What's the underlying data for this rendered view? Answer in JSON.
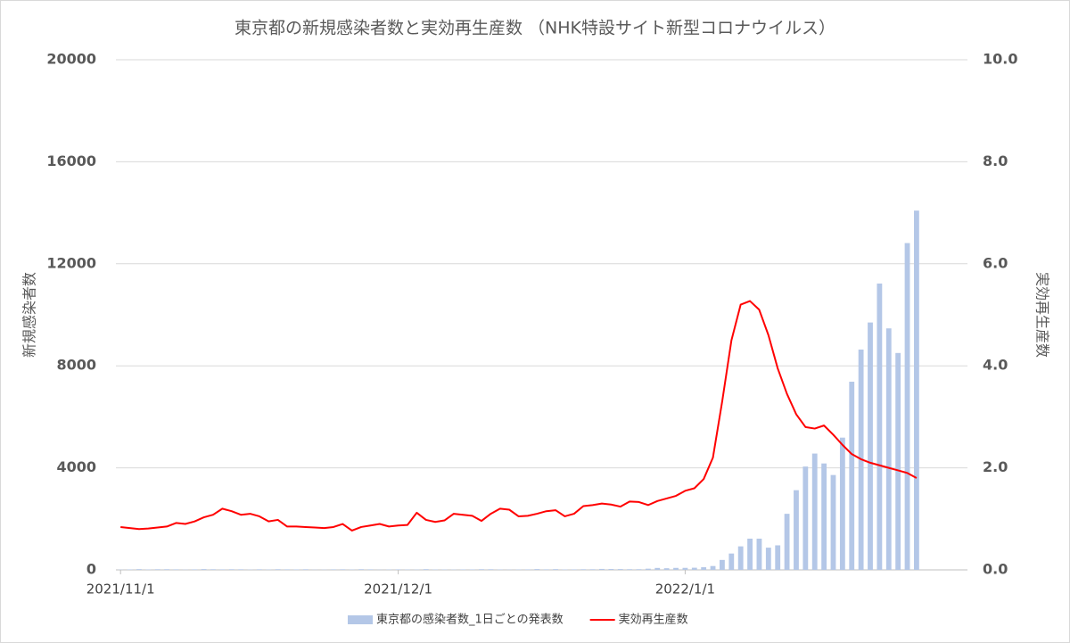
{
  "chart_data": {
    "type": "bar-line",
    "title": "東京都の新規感染者数と実効再生産数 （NHK特設サイト新型コロナウイルス）",
    "y_label": "新規感染者数",
    "y2_label": "実効再生産数",
    "categories": [
      "2021/11/1",
      null,
      null,
      null,
      null,
      null,
      null,
      null,
      null,
      null,
      null,
      null,
      null,
      null,
      null,
      null,
      null,
      null,
      null,
      null,
      null,
      null,
      null,
      null,
      null,
      null,
      null,
      null,
      null,
      null,
      "2021/12/1",
      null,
      null,
      null,
      null,
      null,
      null,
      null,
      null,
      null,
      null,
      null,
      null,
      null,
      null,
      null,
      null,
      null,
      null,
      null,
      null,
      null,
      null,
      null,
      null,
      null,
      null,
      null,
      null,
      null,
      null,
      "2022/1/1",
      null,
      null,
      null,
      null,
      null,
      null,
      null,
      null,
      null,
      null,
      null,
      null,
      null,
      null,
      null,
      null,
      null,
      null,
      null,
      null,
      null,
      null,
      null,
      null,
      null,
      null,
      null,
      null,
      null,
      null
    ],
    "ylim": [
      0,
      20000
    ],
    "yticks": [
      0,
      4000,
      8000,
      12000,
      16000,
      20000
    ],
    "y2lim": [
      0,
      10
    ],
    "y2ticks": [
      {
        "value": 0,
        "label": "0.0"
      },
      {
        "value": 2,
        "label": "2.0"
      },
      {
        "value": 4,
        "label": "4.0"
      },
      {
        "value": 6,
        "label": "6.0"
      },
      {
        "value": 8,
        "label": "8.0"
      },
      {
        "value": 10,
        "label": "10.0"
      }
    ],
    "grid": true,
    "legend": "bottom",
    "series": [
      {
        "name": "東京都の感染者数_1日ごとの発表数",
        "type": "bar",
        "color": "#b4c7e7",
        "values": [
          9,
          18,
          29,
          17,
          25,
          26,
          21,
          10,
          20,
          31,
          25,
          20,
          25,
          23,
          11,
          23,
          14,
          26,
          21,
          18,
          24,
          8,
          10,
          21,
          23,
          13,
          26,
          21,
          7,
          14,
          20,
          14,
          12,
          28,
          15,
          15,
          11,
          18,
          18,
          26,
          25,
          15,
          9,
          15,
          19,
          31,
          21,
          29,
          16,
          19,
          25,
          25,
          37,
          34,
          32,
          27,
          27,
          46,
          76,
          64,
          78,
          79,
          84,
          103,
          151,
          390,
          641,
          922,
          1224,
          1223,
          871,
          962,
          2198,
          3124,
          4051,
          4561,
          4172,
          3719,
          5185,
          7377,
          8638,
          9699,
          11227,
          9468,
          8503,
          12813,
          14086,
          null,
          null,
          null,
          null,
          null
        ]
      },
      {
        "name": "実効再生産数",
        "type": "line",
        "axis": "y2",
        "color": "#ff0000",
        "values": [
          0.84,
          0.82,
          0.8,
          0.81,
          0.83,
          0.85,
          0.92,
          0.9,
          0.95,
          1.03,
          1.08,
          1.2,
          1.15,
          1.08,
          1.1,
          1.05,
          0.95,
          0.98,
          0.85,
          0.85,
          0.84,
          0.83,
          0.82,
          0.84,
          0.9,
          0.77,
          0.84,
          0.87,
          0.9,
          0.85,
          0.87,
          0.88,
          1.12,
          0.98,
          0.94,
          0.97,
          1.1,
          1.08,
          1.06,
          0.96,
          1.1,
          1.2,
          1.18,
          1.05,
          1.06,
          1.1,
          1.15,
          1.17,
          1.05,
          1.1,
          1.25,
          1.27,
          1.3,
          1.28,
          1.24,
          1.34,
          1.33,
          1.27,
          1.35,
          1.4,
          1.45,
          1.55,
          1.6,
          1.78,
          2.2,
          3.3,
          4.5,
          5.2,
          5.27,
          5.1,
          4.6,
          3.95,
          3.45,
          3.05,
          2.8,
          2.77,
          2.83,
          2.65,
          2.45,
          2.27,
          2.17,
          2.1,
          2.05,
          2.0,
          1.95,
          1.9,
          1.8,
          null,
          null,
          null,
          null,
          null
        ]
      }
    ]
  }
}
